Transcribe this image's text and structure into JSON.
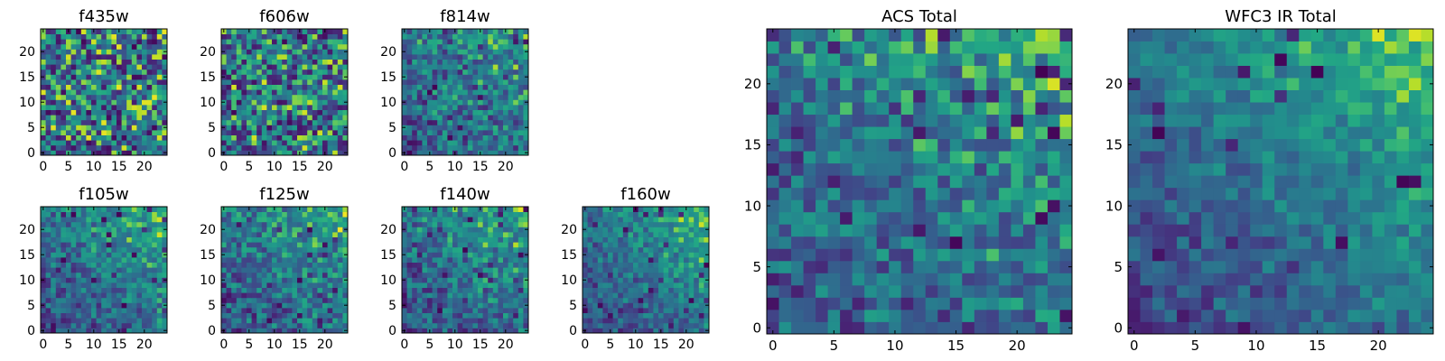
{
  "chart_data": [
    {
      "id": "f435w",
      "type": "heatmap",
      "title": "f435w",
      "rows": 25,
      "cols": 25,
      "xlim": [
        0,
        24
      ],
      "ylim": [
        0,
        24
      ],
      "xticks": [
        0,
        5,
        10,
        15,
        20
      ],
      "yticks": [
        0,
        5,
        10,
        15,
        20
      ],
      "colormap": "viridis",
      "pattern": "noise",
      "noise": 0.95,
      "seed": 11
    },
    {
      "id": "f606w",
      "type": "heatmap",
      "title": "f606w",
      "rows": 25,
      "cols": 25,
      "xlim": [
        0,
        24
      ],
      "ylim": [
        0,
        24
      ],
      "xticks": [
        0,
        5,
        10,
        15,
        20
      ],
      "yticks": [
        0,
        5,
        10,
        15,
        20
      ],
      "colormap": "viridis",
      "pattern": "noise",
      "noise": 0.9,
      "seed": 23
    },
    {
      "id": "f814w",
      "type": "heatmap",
      "title": "f814w",
      "rows": 25,
      "cols": 25,
      "xlim": [
        0,
        24
      ],
      "ylim": [
        0,
        24
      ],
      "xticks": [
        0,
        5,
        10,
        15,
        20
      ],
      "yticks": [
        0,
        5,
        10,
        15,
        20
      ],
      "colormap": "viridis",
      "pattern": "gradient",
      "noise": 0.6,
      "seed": 37
    },
    {
      "id": "f105w",
      "type": "heatmap",
      "title": "f105w",
      "rows": 25,
      "cols": 25,
      "xlim": [
        0,
        24
      ],
      "ylim": [
        0,
        24
      ],
      "xticks": [
        0,
        5,
        10,
        15,
        20
      ],
      "yticks": [
        0,
        5,
        10,
        15,
        20
      ],
      "colormap": "viridis",
      "pattern": "gradient",
      "noise": 0.45,
      "seed": 41
    },
    {
      "id": "f125w",
      "type": "heatmap",
      "title": "f125w",
      "rows": 25,
      "cols": 25,
      "xlim": [
        0,
        24
      ],
      "ylim": [
        0,
        24
      ],
      "xticks": [
        0,
        5,
        10,
        15,
        20
      ],
      "yticks": [
        0,
        5,
        10,
        15,
        20
      ],
      "colormap": "viridis",
      "pattern": "gradient",
      "noise": 0.55,
      "seed": 53
    },
    {
      "id": "f140w",
      "type": "heatmap",
      "title": "f140w",
      "rows": 25,
      "cols": 25,
      "xlim": [
        0,
        24
      ],
      "ylim": [
        0,
        24
      ],
      "xticks": [
        0,
        5,
        10,
        15,
        20
      ],
      "yticks": [
        0,
        5,
        10,
        15,
        20
      ],
      "colormap": "viridis",
      "pattern": "gradient",
      "noise": 0.5,
      "seed": 67
    },
    {
      "id": "f160w",
      "type": "heatmap",
      "title": "f160w",
      "rows": 25,
      "cols": 25,
      "xlim": [
        0,
        24
      ],
      "ylim": [
        0,
        24
      ],
      "xticks": [
        0,
        5,
        10,
        15,
        20
      ],
      "yticks": [
        0,
        5,
        10,
        15,
        20
      ],
      "colormap": "viridis",
      "pattern": "gradient",
      "noise": 0.4,
      "seed": 79
    },
    {
      "id": "acs-total",
      "type": "heatmap",
      "title": "ACS Total",
      "rows": 25,
      "cols": 25,
      "xlim": [
        0,
        24
      ],
      "ylim": [
        0,
        24
      ],
      "xticks": [
        0,
        5,
        10,
        15,
        20
      ],
      "yticks": [
        0,
        5,
        10,
        15,
        20
      ],
      "colormap": "viridis",
      "pattern": "gradient",
      "noise": 0.55,
      "seed": 89
    },
    {
      "id": "wfc3-ir-total",
      "type": "heatmap",
      "title": "WFC3 IR Total",
      "rows": 25,
      "cols": 25,
      "xlim": [
        0,
        24
      ],
      "ylim": [
        0,
        24
      ],
      "xticks": [
        0,
        5,
        10,
        15,
        20
      ],
      "yticks": [
        0,
        5,
        10,
        15,
        20
      ],
      "colormap": "viridis",
      "pattern": "gradient",
      "noise": 0.3,
      "seed": 97
    }
  ]
}
